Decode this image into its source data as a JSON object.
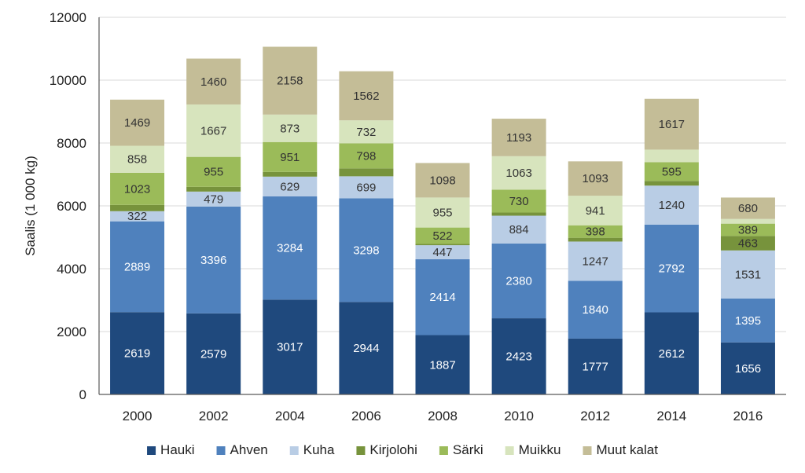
{
  "chart_data": {
    "type": "bar",
    "stacked": true,
    "title": "",
    "xlabel": "",
    "ylabel": "Saalis (1 000 kg)",
    "ylim": [
      0,
      12000
    ],
    "yticks": [
      0,
      2000,
      4000,
      6000,
      8000,
      10000,
      12000
    ],
    "grid": true,
    "legend_position": "bottom",
    "categories": [
      "2000",
      "2002",
      "2004",
      "2006",
      "2008",
      "2010",
      "2012",
      "2014",
      "2016"
    ],
    "series": [
      {
        "name": "Hauki",
        "color": "#1f497d",
        "label_color": "#ffffff",
        "values": [
          2619,
          2579,
          3017,
          2944,
          1887,
          2423,
          1777,
          2612,
          1656
        ],
        "labels": [
          "2619",
          "2579",
          "3017",
          "2944",
          "1887",
          "2423",
          "1777",
          "2612",
          "1656"
        ]
      },
      {
        "name": "Ahven",
        "color": "#4f81bd",
        "label_color": "#ffffff",
        "values": [
          2889,
          3396,
          3284,
          3298,
          2414,
          2380,
          1840,
          2792,
          1395
        ],
        "labels": [
          "2889",
          "3396",
          "3284",
          "3298",
          "2414",
          "2380",
          "1840",
          "2792",
          "1395"
        ]
      },
      {
        "name": "Kuha",
        "color": "#b9cde5",
        "label_color": "#333333",
        "values": [
          322,
          479,
          629,
          699,
          447,
          884,
          1247,
          1240,
          1531
        ],
        "labels": [
          "322",
          "479",
          "629",
          "699",
          "447",
          "884",
          "1247",
          "1240",
          "1531"
        ]
      },
      {
        "name": "Kirjolohi",
        "color": "#77933c",
        "label_color": "#333333",
        "values": [
          200,
          150,
          150,
          250,
          40,
          100,
          120,
          150,
          463
        ],
        "labels": [
          "",
          "",
          "",
          "",
          "",
          "",
          "",
          "",
          "463"
        ]
      },
      {
        "name": "Särki",
        "color": "#9bbb59",
        "label_color": "#333333",
        "values": [
          1023,
          955,
          951,
          798,
          522,
          730,
          398,
          595,
          389
        ],
        "labels": [
          "1023",
          "955",
          "951",
          "798",
          "522",
          "730",
          "398",
          "595",
          "389"
        ]
      },
      {
        "name": "Muikku",
        "color": "#d7e4bd",
        "label_color": "#333333",
        "values": [
          858,
          1667,
          873,
          732,
          955,
          1063,
          941,
          400,
          150
        ],
        "labels": [
          "858",
          "1667",
          "873",
          "732",
          "955",
          "1063",
          "941",
          "",
          ""
        ]
      },
      {
        "name": "Muut kalat",
        "color": "#c4bd97",
        "label_color": "#333333",
        "values": [
          1469,
          1460,
          2158,
          1562,
          1098,
          1193,
          1093,
          1617,
          680
        ],
        "labels": [
          "1469",
          "1460",
          "2158",
          "1562",
          "1098",
          "1193",
          "1093",
          "1617",
          "680"
        ]
      }
    ]
  }
}
